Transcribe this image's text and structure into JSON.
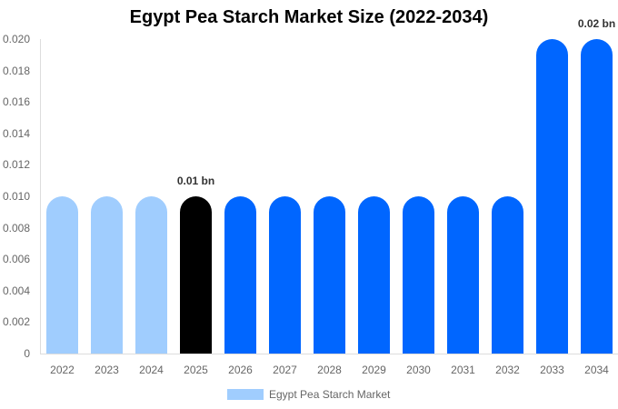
{
  "chart_data": {
    "type": "bar",
    "title": "Egypt Pea Starch Market Size (2022-2034)",
    "xlabel": "",
    "ylabel": "",
    "ylim": [
      0,
      0.02
    ],
    "yticks": [
      "0",
      "0.002",
      "0.004",
      "0.006",
      "0.008",
      "0.010",
      "0.012",
      "0.014",
      "0.016",
      "0.018",
      "0.020"
    ],
    "categories": [
      "2022",
      "2023",
      "2024",
      "2025",
      "2026",
      "2027",
      "2028",
      "2029",
      "2030",
      "2031",
      "2032",
      "2033",
      "2034"
    ],
    "series": [
      {
        "name": "Egypt Pea Starch Market",
        "values": [
          0.01,
          0.01,
          0.01,
          0.01,
          0.01,
          0.01,
          0.01,
          0.01,
          0.01,
          0.01,
          0.01,
          0.02,
          0.02
        ]
      }
    ],
    "bar_colors": [
      "#a0cdfe",
      "#a0cdfe",
      "#a0cdfe",
      "#000000",
      "#0066ff",
      "#0066ff",
      "#0066ff",
      "#0066ff",
      "#0066ff",
      "#0066ff",
      "#0066ff",
      "#0066ff",
      "#0066ff"
    ],
    "annotations": [
      {
        "category": "2025",
        "text": "0.01 bn"
      },
      {
        "category": "2034",
        "text": "0.02 bn"
      }
    ],
    "legend": {
      "position": "bottom",
      "entries": [
        {
          "label": "Egypt Pea Starch Market",
          "color": "#a0cdfe"
        }
      ]
    },
    "grid": false
  }
}
